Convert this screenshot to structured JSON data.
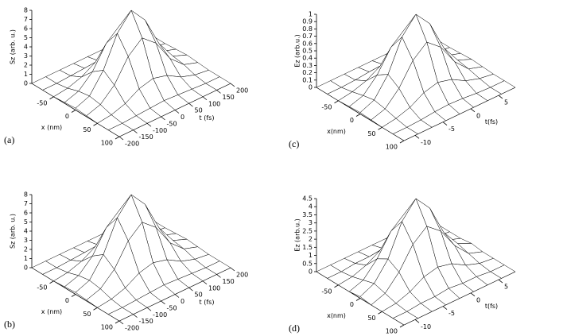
{
  "chart_data": [
    {
      "type": "surface",
      "panel_label": "(a)",
      "x_label": "x (nm)",
      "y_label": "t (fs)",
      "z_label": "Sz (arb. u.)",
      "xlim": [
        -100,
        100
      ],
      "ylim": [
        -200,
        200
      ],
      "zlim": [
        0,
        8
      ],
      "xticks": [
        -50,
        0,
        50,
        100
      ],
      "yticks": [
        -200,
        -150,
        -100,
        -50,
        0,
        50,
        100,
        150,
        200
      ],
      "zticks": [
        0,
        1,
        2,
        3,
        4,
        5,
        6,
        7,
        8
      ],
      "x": [
        -100,
        -75,
        -50,
        -25,
        0,
        25,
        50,
        75,
        100
      ],
      "y": [
        -200,
        -150,
        -100,
        -50,
        0,
        50,
        100,
        150,
        200
      ],
      "z": [
        [
          0,
          0,
          0,
          0.1,
          0.2,
          0.1,
          0,
          0,
          0
        ],
        [
          0,
          0,
          0.2,
          0.6,
          0.8,
          0.6,
          0.2,
          0,
          0
        ],
        [
          0,
          0.1,
          0.7,
          2,
          2.9,
          2,
          0.7,
          0.1,
          0
        ],
        [
          0,
          0.2,
          1.6,
          4.4,
          6.2,
          4.4,
          1.6,
          0.2,
          0
        ],
        [
          0,
          0.3,
          2,
          5.7,
          8,
          5.7,
          2,
          0.3,
          0
        ],
        [
          0,
          0.2,
          1.6,
          4.4,
          6.2,
          4.4,
          1.6,
          0.2,
          0
        ],
        [
          0,
          0.1,
          0.7,
          2,
          2.9,
          2,
          0.7,
          0.1,
          0
        ],
        [
          0,
          0,
          0.2,
          0.6,
          0.8,
          0.6,
          0.2,
          0,
          0
        ],
        [
          0,
          0,
          0,
          0.1,
          0.2,
          0.1,
          0,
          0,
          0
        ]
      ]
    },
    {
      "type": "surface",
      "panel_label": "(c)",
      "x_label": "x(nm)",
      "y_label": "t(fs)",
      "z_label": "Ez (arb.u.)",
      "xlim": [
        -100,
        100
      ],
      "ylim": [
        -12,
        8
      ],
      "zlim": [
        0,
        1
      ],
      "xticks": [
        -50,
        0,
        50,
        100
      ],
      "yticks": [
        -10,
        -5,
        0,
        5
      ],
      "zticks": [
        0,
        0.1,
        0.2,
        0.3,
        0.4,
        0.5,
        0.6,
        0.7,
        0.8,
        0.9,
        1
      ],
      "x": [
        -100,
        -75,
        -50,
        -25,
        0,
        25,
        50,
        75,
        100
      ],
      "y": [
        -12,
        -9.5,
        -7,
        -4.5,
        -2,
        0.5,
        3,
        5.5,
        8
      ],
      "z": [
        [
          0,
          0,
          0,
          0.01,
          0.02,
          0.01,
          0,
          0,
          0
        ],
        [
          0,
          0,
          0.03,
          0.07,
          0.1,
          0.07,
          0.03,
          0,
          0
        ],
        [
          0,
          0.01,
          0.09,
          0.26,
          0.36,
          0.26,
          0.09,
          0.01,
          0
        ],
        [
          0,
          0.03,
          0.2,
          0.55,
          0.78,
          0.55,
          0.2,
          0.03,
          0
        ],
        [
          0,
          0.04,
          0.25,
          0.71,
          1,
          0.71,
          0.25,
          0.04,
          0
        ],
        [
          0,
          0.03,
          0.2,
          0.55,
          0.78,
          0.55,
          0.2,
          0.03,
          0
        ],
        [
          0,
          0.01,
          0.09,
          0.26,
          0.36,
          0.26,
          0.09,
          0.01,
          0
        ],
        [
          0,
          0,
          0.03,
          0.07,
          0.1,
          0.07,
          0.03,
          0,
          0
        ],
        [
          0,
          0,
          0,
          0.01,
          0.02,
          0.01,
          0,
          0,
          0
        ]
      ]
    },
    {
      "type": "surface",
      "panel_label": "(b)",
      "x_label": "x (nm)",
      "y_label": "t (fs)",
      "z_label": "Sz (arb. u.)",
      "xlim": [
        -100,
        100
      ],
      "ylim": [
        -200,
        200
      ],
      "zlim": [
        0,
        8
      ],
      "xticks": [
        -50,
        0,
        50,
        100
      ],
      "yticks": [
        -200,
        -150,
        -100,
        -50,
        0,
        50,
        100,
        150,
        200
      ],
      "zticks": [
        0,
        1,
        2,
        3,
        4,
        5,
        6,
        7,
        8
      ],
      "x": [
        -100,
        -75,
        -50,
        -25,
        0,
        25,
        50,
        75,
        100
      ],
      "y": [
        -200,
        -150,
        -100,
        -50,
        0,
        50,
        100,
        150,
        200
      ],
      "z": [
        [
          0,
          0,
          0,
          0.1,
          0.2,
          0.1,
          0,
          0,
          0
        ],
        [
          0,
          0,
          0.2,
          0.6,
          0.8,
          0.6,
          0.2,
          0,
          0
        ],
        [
          0,
          0.1,
          0.7,
          2,
          2.9,
          2,
          0.7,
          0.1,
          0
        ],
        [
          0,
          0.2,
          1.6,
          4.4,
          6.2,
          4.4,
          1.6,
          0.2,
          0
        ],
        [
          0,
          0.3,
          2,
          5.7,
          8,
          5.7,
          2,
          0.3,
          0
        ],
        [
          0,
          0.2,
          1.6,
          4.4,
          6.2,
          4.4,
          1.6,
          0.2,
          0
        ],
        [
          0,
          0.1,
          0.7,
          2,
          2.9,
          2,
          0.7,
          0.1,
          0
        ],
        [
          0,
          0,
          0.2,
          0.6,
          0.8,
          0.6,
          0.2,
          0,
          0
        ],
        [
          0,
          0,
          0,
          0.1,
          0.2,
          0.1,
          0,
          0,
          0
        ]
      ]
    },
    {
      "type": "surface",
      "panel_label": "(d)",
      "x_label": "x(nm)",
      "y_label": "t(fs)",
      "z_label": "Ez (arb.u.)",
      "xlim": [
        -100,
        100
      ],
      "ylim": [
        -12,
        8
      ],
      "zlim": [
        0,
        4.5
      ],
      "xticks": [
        -50,
        0,
        50,
        100
      ],
      "yticks": [
        -10,
        -5,
        0,
        5
      ],
      "zticks": [
        0,
        0.5,
        1,
        1.5,
        2,
        2.5,
        3,
        3.5,
        4,
        4.5
      ],
      "x": [
        -100,
        -75,
        -50,
        -25,
        0,
        25,
        50,
        75,
        100
      ],
      "y": [
        -12,
        -9.5,
        -7,
        -4.5,
        -2,
        0.5,
        3,
        5.5,
        8
      ],
      "z": [
        [
          0,
          0,
          0,
          0,
          0.1,
          0,
          0,
          0,
          0
        ],
        [
          0,
          0,
          0.1,
          0.3,
          0.5,
          0.3,
          0.1,
          0,
          0
        ],
        [
          0,
          0.1,
          0.4,
          1.2,
          1.6,
          1.2,
          0.4,
          0.1,
          0
        ],
        [
          0,
          0.1,
          0.9,
          2.5,
          3.5,
          2.5,
          0.9,
          0.1,
          0
        ],
        [
          0,
          0.2,
          1.1,
          3.2,
          4.5,
          3.2,
          1.1,
          0.2,
          0
        ],
        [
          0,
          0.1,
          0.9,
          2.5,
          3.5,
          2.5,
          0.9,
          0.1,
          0
        ],
        [
          0,
          0.1,
          0.4,
          1.2,
          1.6,
          1.2,
          0.4,
          0.1,
          0
        ],
        [
          0,
          0,
          0.1,
          0.3,
          0.5,
          0.3,
          0.1,
          0,
          0
        ],
        [
          0,
          0,
          0,
          0,
          0.1,
          0,
          0,
          0,
          0
        ]
      ]
    }
  ]
}
